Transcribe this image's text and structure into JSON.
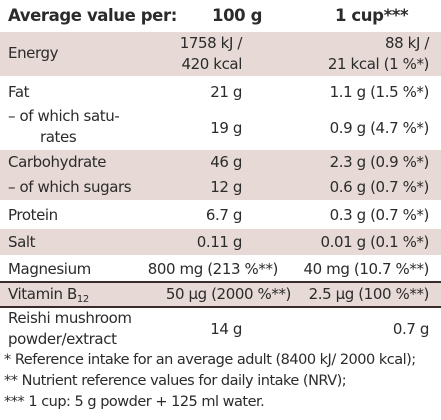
{
  "header": {
    "label": "Average value per:",
    "col1": "100 g",
    "col2": "1 cup***"
  },
  "rows": [
    {
      "label": "Energy",
      "col1_line1": "1758 kJ /",
      "col1_line2": "420 kcal",
      "col2_line1": "88 kJ /",
      "col2_line2": "21 kcal (1 %*)"
    },
    {
      "label": "Fat",
      "col1": "21 g",
      "col2": "1.1 g (1.5 %*)"
    },
    {
      "label_line1": "– of which satu-",
      "label_line2": "rates",
      "col1": "19 g",
      "col2": "0.9 g (4.7 %*)"
    },
    {
      "label": "Carbohydrate",
      "col1": "46 g",
      "col2": "2.3 g (0.9 %*)"
    },
    {
      "label": "– of which sugars",
      "col1": "12 g",
      "col2": "0.6 g (0.7 %*)"
    },
    {
      "label": "Protein",
      "col1": "6.7 g",
      "col2": "0.3 g (0.7 %*)"
    },
    {
      "label": "Salt",
      "col1": "0.11 g",
      "col2": "0.01 g (0.1 %*)"
    },
    {
      "label": "Magnesium",
      "col1": "800 mg (213 %**)",
      "col2": "40 mg (10.7 %**)"
    },
    {
      "label": "Vitamin B",
      "label_sub": "12",
      "col1": "50 µg (2000 %**)",
      "col2": "2.5 µg (100 %**)"
    },
    {
      "label_line1": "Reishi mushroom",
      "label_line2": "powder/extract",
      "col1": "14 g",
      "col2": "0.7 g"
    }
  ],
  "footnotes": [
    "* Reference intake for an average adult (8400 kJ/ 2000 kcal);",
    "** Nutrient reference values for daily intake (NRV);",
    "*** 1 cup: 5 g powder + 125 ml water."
  ],
  "colors": {
    "shade": "#e7dad6",
    "rule": "#3a2a2a"
  }
}
